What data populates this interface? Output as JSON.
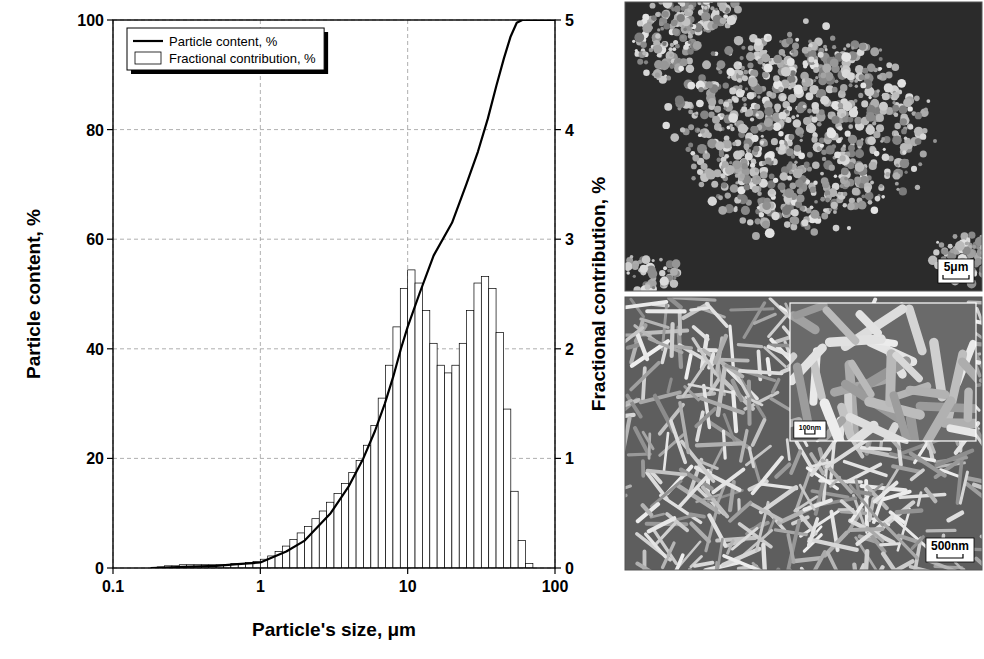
{
  "chart_data": {
    "type": "histogram",
    "xlabel": "Particle's size, μm",
    "ylabel": "Particle content, %",
    "y2label": "Fractional contribution, %",
    "log": "x",
    "grid": true,
    "legend": "upper left",
    "xlim": [
      0.1,
      100
    ],
    "xticks": [
      0.1,
      1,
      10,
      100
    ],
    "ylim": [
      0,
      100
    ],
    "yticks": [
      0,
      20,
      40,
      60,
      80,
      100
    ],
    "y2lim": [
      0,
      5
    ],
    "y2ticks": [
      0,
      1,
      2,
      3,
      4,
      5
    ],
    "bins": [
      0.1995,
      0.2239,
      0.2512,
      0.2818,
      0.3162,
      0.3548,
      0.3981,
      0.4467,
      0.5012,
      0.5623,
      0.631,
      0.7079,
      0.7943,
      0.8913,
      1.0,
      1.122,
      1.259,
      1.413,
      1.585,
      1.778,
      1.995,
      2.239,
      2.512,
      2.818,
      3.162,
      3.548,
      3.981,
      4.467,
      5.012,
      5.623,
      6.31,
      7.079,
      7.943,
      8.913,
      10.0,
      11.22,
      12.59,
      14.13,
      15.85,
      17.78,
      19.95,
      22.39,
      25.12,
      28.18,
      31.62,
      35.48,
      39.81,
      44.67,
      50.12,
      56.23,
      63.1,
      70.79
    ],
    "series": [
      {
        "name": "Particle content, %",
        "type": "line",
        "color": "#000000",
        "x": [
          0.18,
          0.3,
          0.5,
          0.7,
          1.0,
          1.5,
          2.0,
          3.0,
          4.0,
          5.0,
          6.0,
          7.0,
          8.0,
          9.0,
          10.0,
          12.0,
          15.0,
          20.0,
          25.0,
          30.0,
          35.0,
          40.0,
          45.0,
          50.0,
          55.0,
          60.0,
          100.0
        ],
        "values": [
          0,
          0.2,
          0.4,
          0.7,
          1,
          3,
          5,
          10,
          15,
          20,
          25,
          30,
          35,
          40,
          44,
          50,
          57,
          63,
          70,
          76,
          82,
          88,
          93,
          97,
          99.5,
          100,
          100
        ]
      },
      {
        "name": "Fractional contribution, %",
        "type": "bar",
        "axis": "y2",
        "color": "#ffffff",
        "values": [
          0.01,
          0.02,
          0.02,
          0.03,
          0.03,
          0.03,
          0.03,
          0.03,
          0.03,
          0.03,
          0.04,
          0.04,
          0.05,
          0.06,
          0.08,
          0.11,
          0.15,
          0.2,
          0.26,
          0.32,
          0.38,
          0.45,
          0.52,
          0.6,
          0.68,
          0.77,
          0.87,
          0.98,
          1.12,
          1.3,
          1.55,
          1.85,
          2.2,
          2.55,
          2.72,
          2.6,
          2.35,
          2.05,
          1.85,
          1.78,
          1.85,
          2.05,
          2.35,
          2.6,
          2.66,
          2.55,
          2.15,
          1.45,
          0.7,
          0.25,
          0.04
        ]
      }
    ]
  },
  "images": [
    {
      "scale_bar": "5μm"
    },
    {
      "scale_bar": "500nm",
      "inset_scale_bar": "100nm"
    }
  ]
}
